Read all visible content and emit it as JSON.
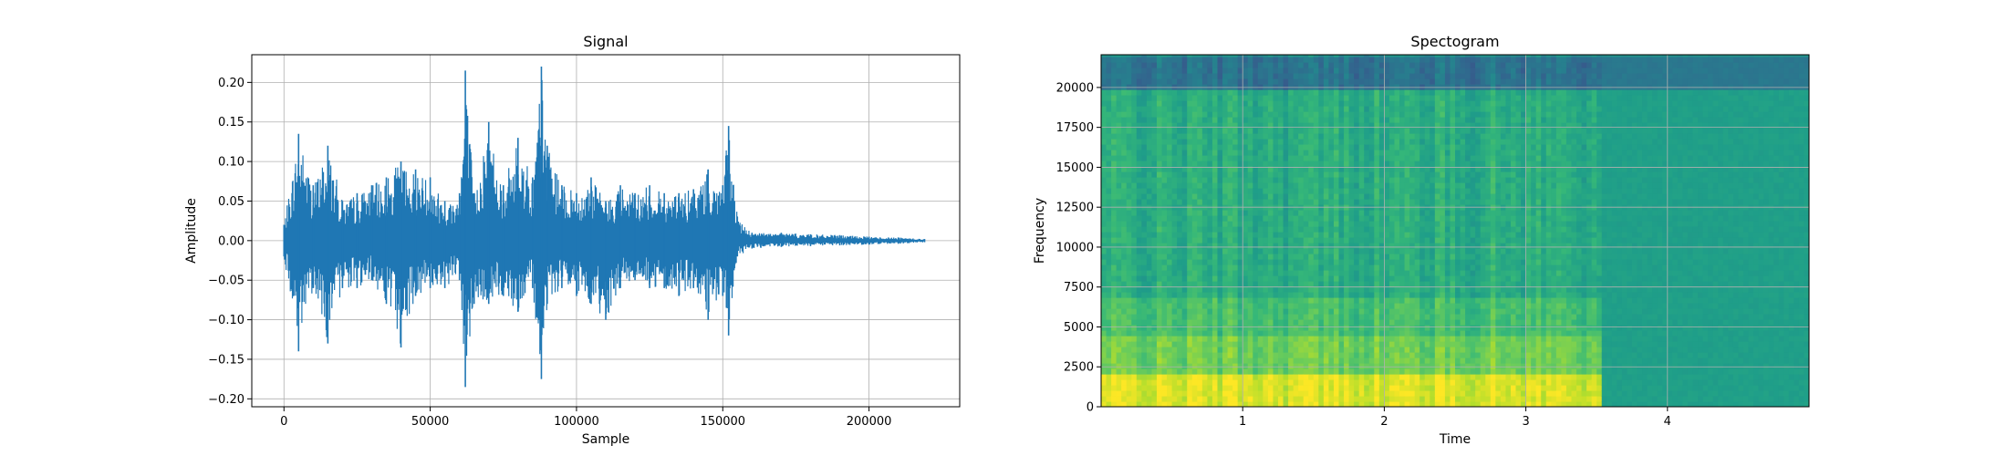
{
  "chart_data": [
    {
      "type": "line",
      "title": "Signal",
      "xlabel": "Sample",
      "ylabel": "Amplitude",
      "xlim": [
        -11000,
        231000
      ],
      "ylim": [
        -0.21,
        0.235
      ],
      "xticks": [
        0,
        50000,
        100000,
        150000,
        200000
      ],
      "xtick_labels": [
        "0",
        "50000",
        "100000",
        "150000",
        "200000"
      ],
      "yticks": [
        0.2,
        0.15,
        0.1,
        0.05,
        0.0,
        -0.05,
        -0.1,
        -0.15,
        -0.2
      ],
      "ytick_labels": [
        "0.20",
        "0.15",
        "0.10",
        "0.05",
        "0.00",
        "−0.05",
        "−0.10",
        "−0.15",
        "−0.20"
      ],
      "grid": true,
      "line_color": "#1f77b4",
      "series": [
        {
          "description_only": false,
          "x": [
            0,
            5000,
            10000,
            15000,
            20000,
            25000,
            30000,
            35000,
            40000,
            45000,
            50000,
            55000,
            60000,
            62000,
            65000,
            70000,
            75000,
            80000,
            85000,
            88000,
            90000,
            95000,
            100000,
            105000,
            110000,
            115000,
            120000,
            125000,
            130000,
            135000,
            140000,
            145000,
            150000,
            152000,
            155000,
            160000,
            170000,
            180000,
            190000,
            200000,
            210000,
            219000
          ],
          "upper": [
            0.02,
            0.135,
            0.07,
            0.12,
            0.05,
            0.06,
            0.07,
            0.08,
            0.1,
            0.09,
            0.08,
            0.05,
            0.06,
            0.215,
            0.06,
            0.15,
            0.07,
            0.13,
            0.08,
            0.22,
            0.12,
            0.07,
            0.06,
            0.08,
            0.05,
            0.07,
            0.06,
            0.07,
            0.06,
            0.06,
            0.065,
            0.09,
            0.07,
            0.145,
            0.03,
            0.01,
            0.01,
            0.008,
            0.007,
            0.005,
            0.004,
            0.002
          ],
          "lower": [
            -0.02,
            -0.14,
            -0.06,
            -0.13,
            -0.06,
            -0.06,
            -0.05,
            -0.08,
            -0.135,
            -0.07,
            -0.06,
            -0.06,
            -0.05,
            -0.185,
            -0.08,
            -0.08,
            -0.07,
            -0.09,
            -0.06,
            -0.175,
            -0.08,
            -0.06,
            -0.07,
            -0.08,
            -0.1,
            -0.06,
            -0.05,
            -0.06,
            -0.06,
            -0.07,
            -0.06,
            -0.1,
            -0.07,
            -0.12,
            -0.02,
            -0.01,
            -0.008,
            -0.007,
            -0.006,
            -0.005,
            -0.004,
            -0.002
          ]
        }
      ]
    },
    {
      "type": "heatmap",
      "title": "Spectogram",
      "xlabel": "Time",
      "ylabel": "Frequency",
      "xlim": [
        0,
        5.0
      ],
      "ylim": [
        0,
        22050
      ],
      "xticks": [
        1,
        2,
        3,
        4
      ],
      "xtick_labels": [
        "1",
        "2",
        "3",
        "4"
      ],
      "yticks": [
        0,
        2500,
        5000,
        7500,
        10000,
        12500,
        15000,
        17500,
        20000
      ],
      "ytick_labels": [
        "0",
        "2500",
        "5000",
        "7500",
        "10000",
        "12500",
        "15000",
        "17500",
        "20000"
      ],
      "grid": true,
      "colormap": "viridis",
      "regions": [
        {
          "t": [
            0,
            3.55
          ],
          "f": [
            0,
            2000
          ],
          "level": 0.95
        },
        {
          "t": [
            0,
            3.55
          ],
          "f": [
            2000,
            4500
          ],
          "level": 0.78
        },
        {
          "t": [
            0,
            3.55
          ],
          "f": [
            4500,
            7000
          ],
          "level": 0.7
        },
        {
          "t": [
            0,
            3.55
          ],
          "f": [
            7000,
            19800
          ],
          "level": 0.62
        },
        {
          "t": [
            0,
            3.55
          ],
          "f": [
            19800,
            22050
          ],
          "level": 0.38
        },
        {
          "t": [
            3.55,
            5.0
          ],
          "f": [
            0,
            20000
          ],
          "level": 0.56
        },
        {
          "t": [
            3.55,
            5.0
          ],
          "f": [
            20000,
            22050
          ],
          "level": 0.4
        }
      ]
    }
  ]
}
